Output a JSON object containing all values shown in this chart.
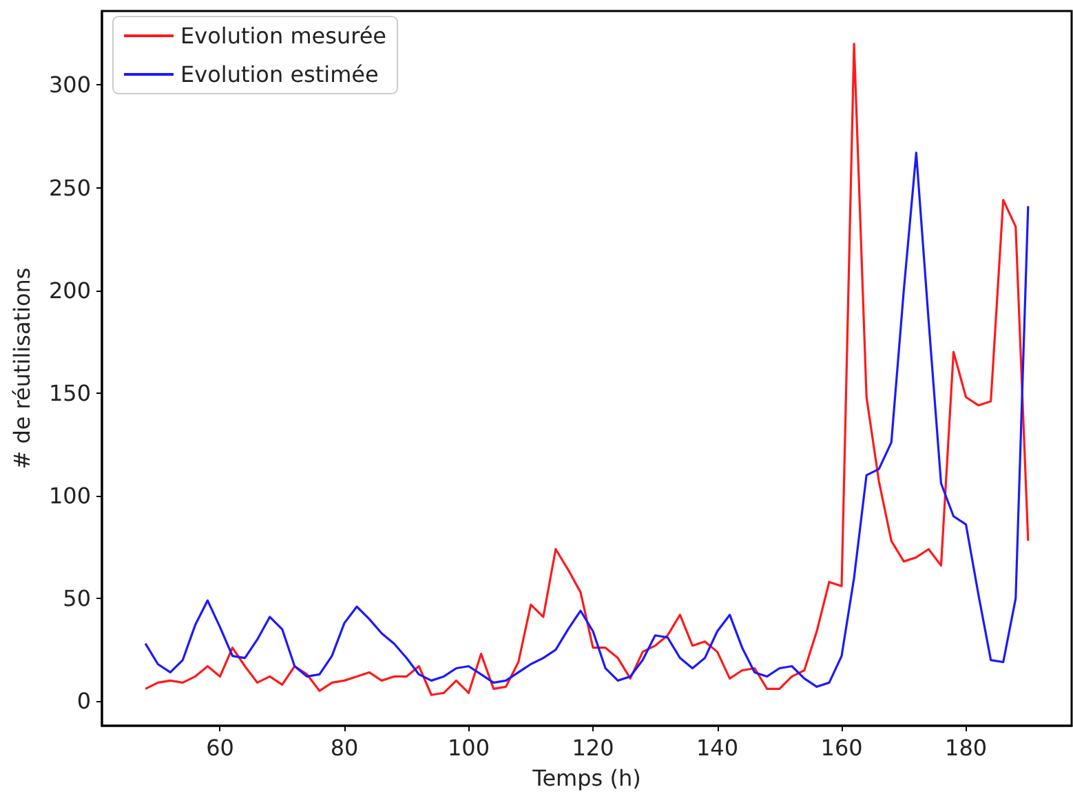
{
  "chart_data": {
    "type": "line",
    "xlabel": "Temps (h)",
    "ylabel": "# de réutilisations",
    "x": [
      48,
      50,
      52,
      54,
      56,
      58,
      60,
      62,
      64,
      66,
      68,
      70,
      72,
      74,
      76,
      78,
      80,
      82,
      84,
      86,
      88,
      90,
      92,
      94,
      96,
      98,
      100,
      102,
      104,
      106,
      108,
      110,
      112,
      114,
      116,
      118,
      120,
      122,
      124,
      126,
      128,
      130,
      132,
      134,
      136,
      138,
      140,
      142,
      144,
      146,
      148,
      150,
      152,
      154,
      156,
      158,
      160,
      162,
      164,
      166,
      168,
      170,
      172,
      174,
      176,
      178,
      180,
      182,
      184,
      186,
      188,
      190
    ],
    "series": [
      {
        "name": "Evolution mesurée",
        "color": "#ff1a1a",
        "values": [
          6,
          9,
          10,
          9,
          12,
          17,
          12,
          26,
          17,
          9,
          12,
          8,
          17,
          13,
          5,
          9,
          10,
          12,
          14,
          10,
          12,
          12,
          17,
          3,
          4,
          10,
          4,
          23,
          6,
          7,
          19,
          47,
          41,
          74,
          64,
          53,
          26,
          26,
          21,
          11,
          24,
          27,
          32,
          42,
          27,
          29,
          24,
          11,
          15,
          16,
          6,
          6,
          12,
          15,
          34,
          58,
          56,
          320,
          148,
          107,
          78,
          68,
          70,
          74,
          66,
          170,
          148,
          144,
          146,
          244,
          231,
          78
        ]
      },
      {
        "name": "Evolution estimée",
        "color": "#1a1aff",
        "values": [
          28,
          18,
          14,
          20,
          37,
          49,
          36,
          22,
          21,
          30,
          41,
          35,
          17,
          12,
          13,
          22,
          38,
          46,
          40,
          33,
          28,
          21,
          13,
          10,
          12,
          16,
          17,
          13,
          9,
          10,
          14,
          18,
          21,
          25,
          35,
          44,
          34,
          16,
          10,
          12,
          20,
          32,
          31,
          21,
          16,
          21,
          34,
          42,
          26,
          14,
          12,
          16,
          17,
          11,
          7,
          9,
          22,
          60,
          110,
          113,
          126,
          200,
          267,
          185,
          106,
          90,
          86,
          52,
          20,
          19,
          50,
          241
        ]
      }
    ],
    "xlim": [
      41,
      197
    ],
    "ylim": [
      -12,
      336
    ],
    "xticks": [
      60,
      80,
      100,
      120,
      140,
      160,
      180
    ],
    "yticks": [
      0,
      50,
      100,
      150,
      200,
      250,
      300
    ],
    "legend": "top left",
    "marker": "none",
    "line_style": "solid"
  }
}
